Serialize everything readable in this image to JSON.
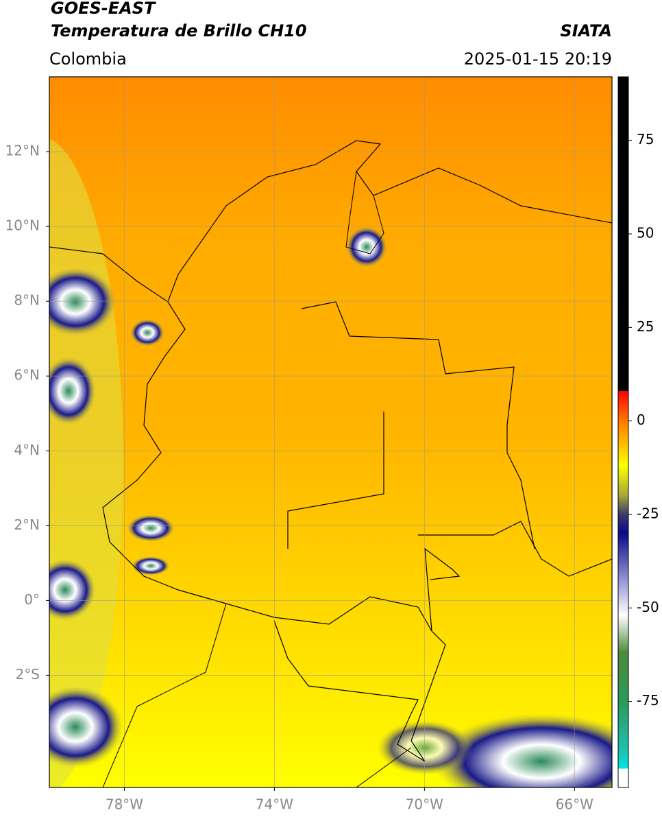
{
  "map": {
    "title_line1": "GOES-EAST",
    "title_line2": "Temperatura de Brillo CH10",
    "source": "SIATA",
    "region": "Colombia",
    "datetime": "2025-01-15 20:19",
    "xlim": [
      -80,
      -65
    ],
    "ylim": [
      -5,
      14
    ],
    "xticks": [
      {
        "value": -78,
        "label": "78°W"
      },
      {
        "value": -74,
        "label": "74°W"
      },
      {
        "value": -70,
        "label": "70°W"
      },
      {
        "value": -66,
        "label": "66°W"
      }
    ],
    "yticks": [
      {
        "value": 12,
        "label": "12°N"
      },
      {
        "value": 10,
        "label": "10°N"
      },
      {
        "value": 8,
        "label": "8°N"
      },
      {
        "value": 6,
        "label": "6°N"
      },
      {
        "value": 4,
        "label": "4°N"
      },
      {
        "value": 2,
        "label": "2°N"
      },
      {
        "value": 0,
        "label": "0°"
      },
      {
        "value": -2,
        "label": "2°S"
      }
    ],
    "grid": true,
    "colorbar": {
      "lim": [
        -98,
        92
      ],
      "ticks": [
        75,
        50,
        25,
        0,
        -25,
        -50,
        -75
      ],
      "stops": [
        {
          "value": 92,
          "color": "#000000"
        },
        {
          "value": 8,
          "color": "#000000"
        },
        {
          "value": 8,
          "color": "#ff0000"
        },
        {
          "value": 0,
          "color": "#ff7a00"
        },
        {
          "value": -12,
          "color": "#ffff00"
        },
        {
          "value": -20,
          "color": "#a5a53a"
        },
        {
          "value": -25,
          "color": "#3a3a6a"
        },
        {
          "value": -30,
          "color": "#0a0a8a"
        },
        {
          "value": -45,
          "color": "#b0b0e0"
        },
        {
          "value": -52,
          "color": "#ffffff"
        },
        {
          "value": -62,
          "color": "#4a8a3a"
        },
        {
          "value": -75,
          "color": "#2a9a5a"
        },
        {
          "value": -88,
          "color": "#20c0b0"
        },
        {
          "value": -93,
          "color": "#00e5e5"
        },
        {
          "value": -93,
          "color": "#ffffff"
        },
        {
          "value": -98,
          "color": "#ffffff"
        }
      ]
    }
  }
}
